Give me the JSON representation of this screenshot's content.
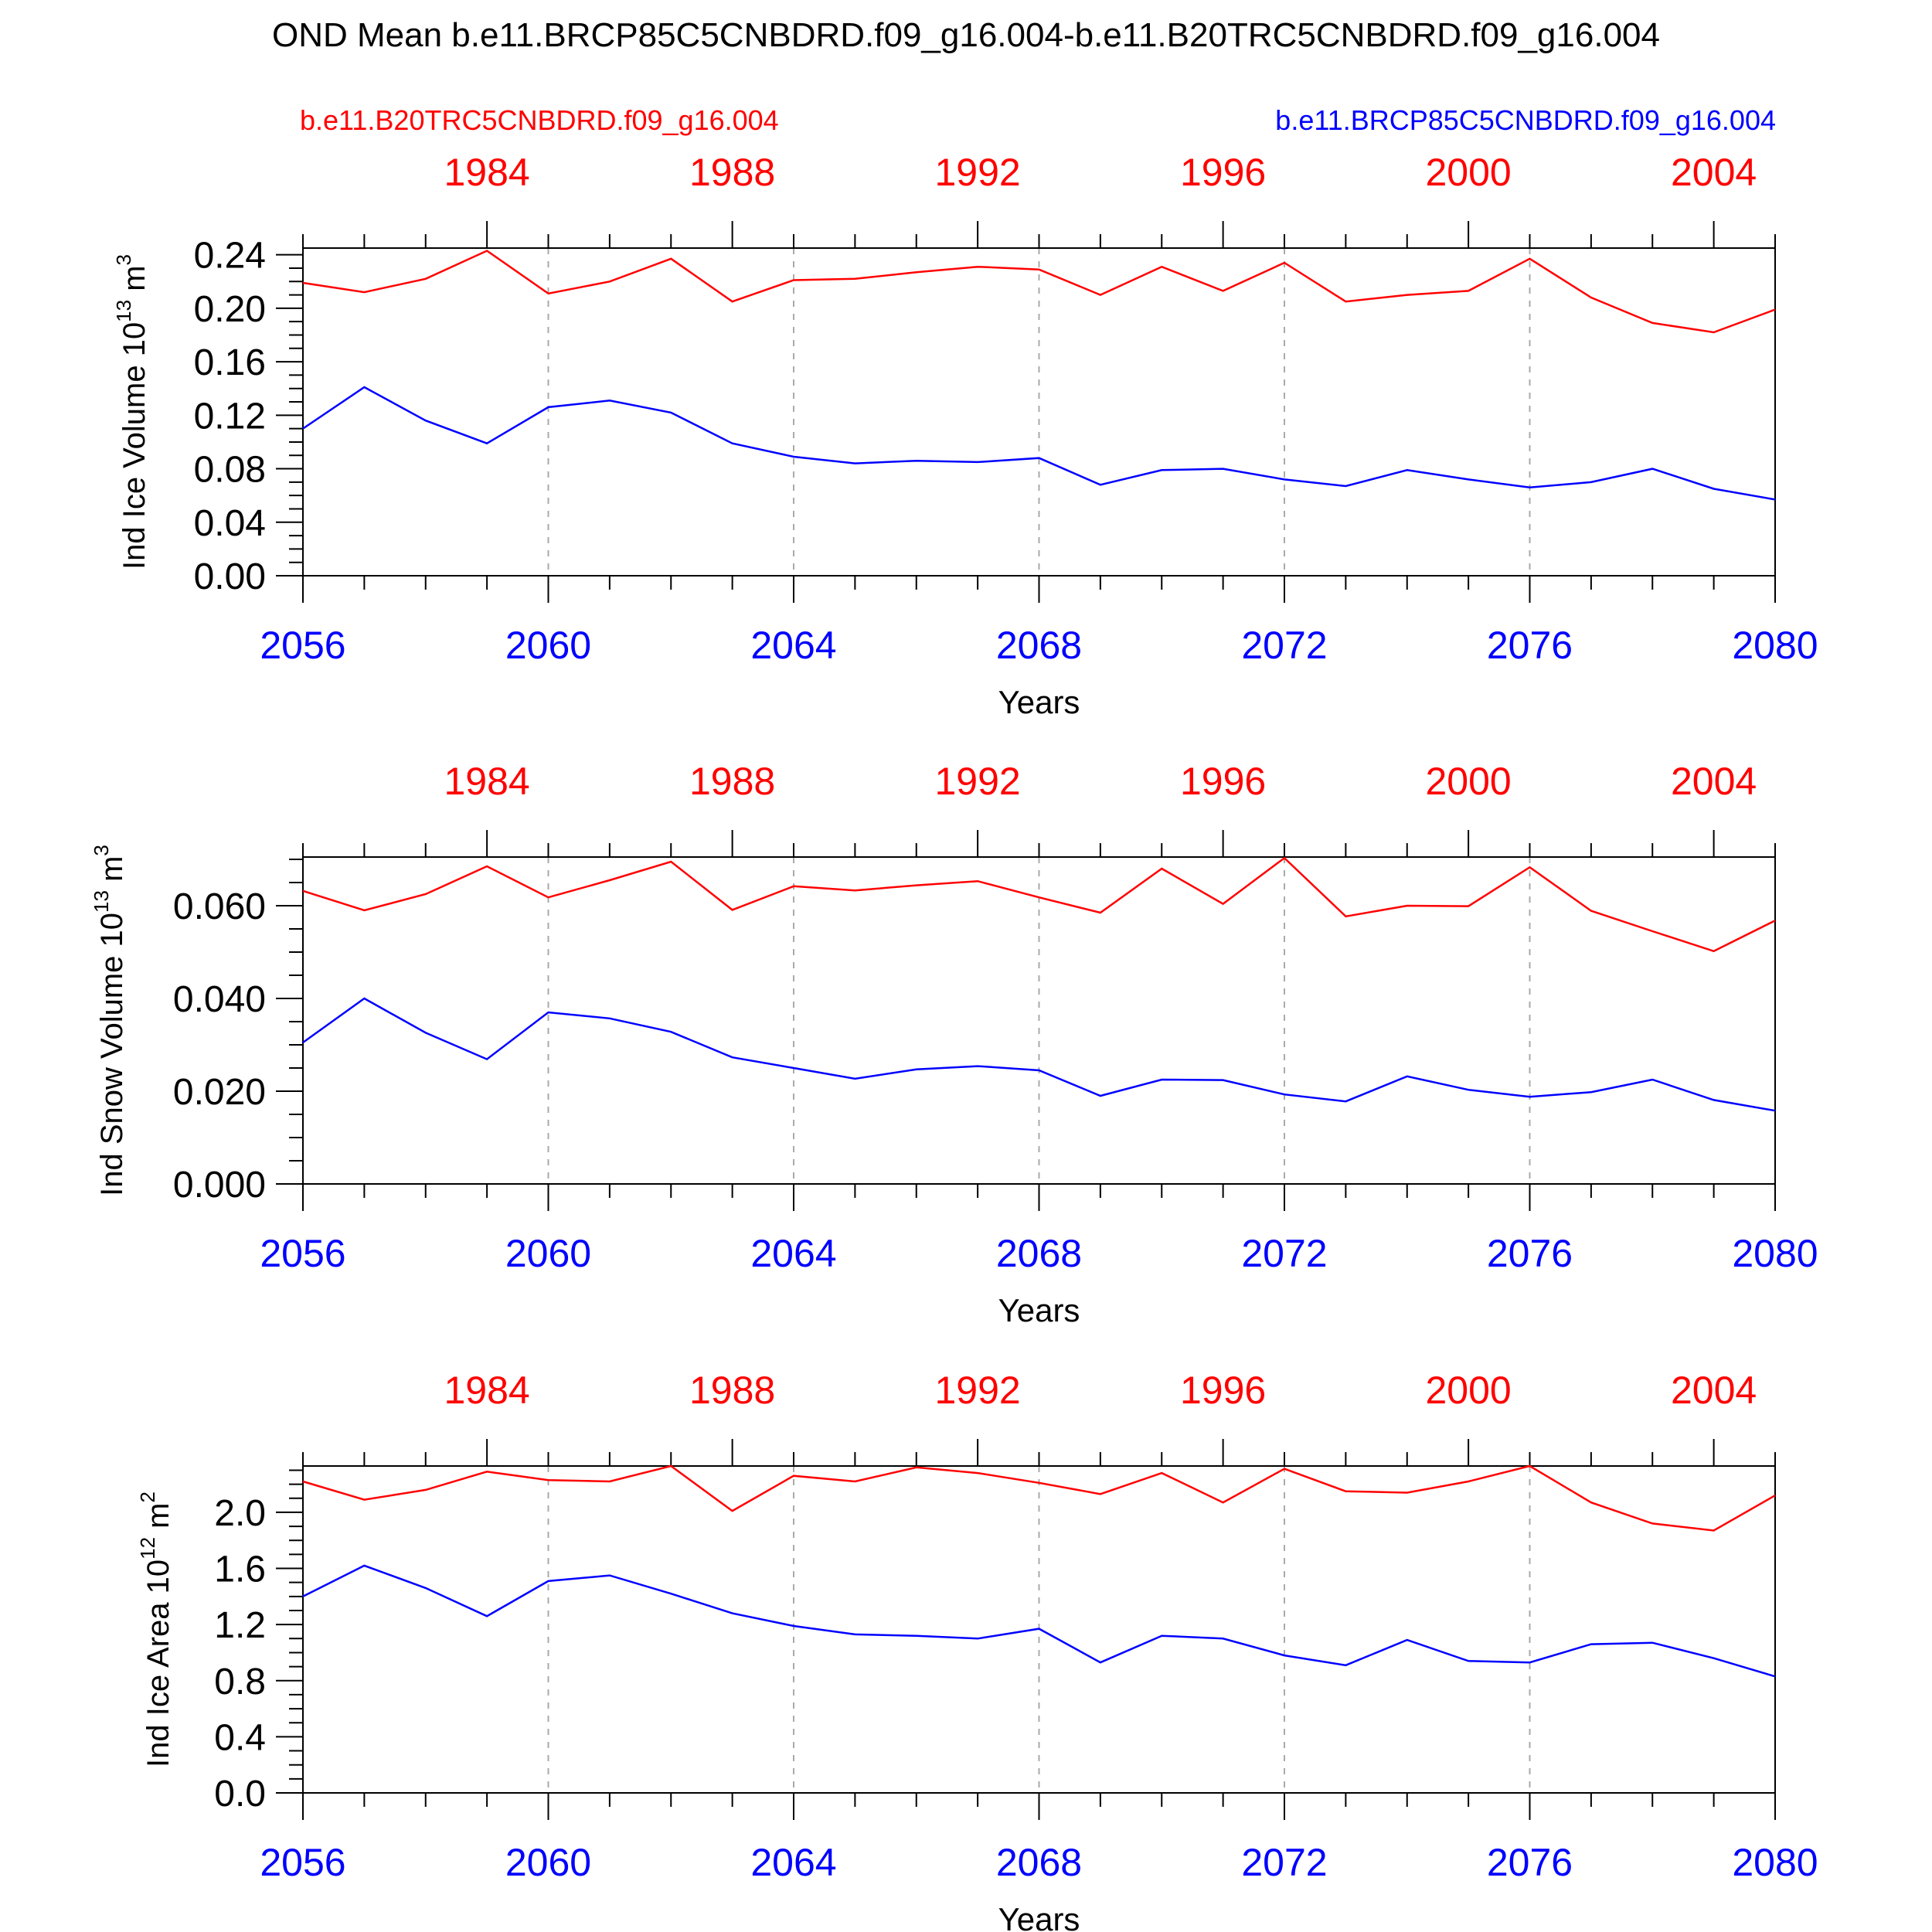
{
  "title": "OND Mean b.e11.BRCP85C5CNBDRD.f09_g16.004-b.e11.B20TRC5CNBDRD.f09_g16.004",
  "legend": {
    "left": {
      "label": "b.e11.B20TRC5CNBDRD.f09_g16.004",
      "color": "#ff0000"
    },
    "right": {
      "label": "b.e11.BRCP85C5CNBDRD.f09_g16.004",
      "color": "#0000ff"
    }
  },
  "colors": {
    "red": "#ff0000",
    "blue": "#0000ff",
    "grid": "#aaaaaa",
    "axis": "#000000"
  },
  "chart_data": [
    {
      "type": "line",
      "ylabel": "Ind Ice Volume 10",
      "ylabel_exp": "13",
      "ylabel_unit": " m",
      "ylabel_unit_exp": "3",
      "xlabel": "Years",
      "ylim": [
        0,
        0.245
      ],
      "yticks": [
        "0.00",
        "0.04",
        "0.08",
        "0.12",
        "0.16",
        "0.20",
        "0.24"
      ],
      "ytick_values": [
        0,
        0.04,
        0.08,
        0.12,
        0.16,
        0.2,
        0.24
      ],
      "bottom_axis": {
        "ticks": [
          "2056",
          "2060",
          "2064",
          "2068",
          "2072",
          "2076",
          "2080"
        ],
        "range": [
          2056,
          2080
        ]
      },
      "top_axis": {
        "ticks": [
          "1984",
          "1988",
          "1992",
          "1996",
          "2000",
          "2004"
        ],
        "range": [
          1981,
          2005
        ]
      },
      "series": [
        {
          "name": "b.e11.B20TRC5CNBDRD.f09_g16.004",
          "color": "#ff0000",
          "x": [
            1981,
            1982,
            1983,
            1984,
            1985,
            1986,
            1987,
            1988,
            1989,
            1990,
            1991,
            1992,
            1993,
            1994,
            1995,
            1996,
            1997,
            1998,
            1999,
            2000,
            2001,
            2002,
            2003,
            2004,
            2005
          ],
          "values": [
            0.219,
            0.212,
            0.222,
            0.243,
            0.211,
            0.22,
            0.237,
            0.205,
            0.221,
            0.222,
            0.227,
            0.231,
            0.229,
            0.21,
            0.231,
            0.213,
            0.234,
            0.205,
            0.21,
            0.213,
            0.237,
            0.208,
            0.189,
            0.182,
            0.199
          ]
        },
        {
          "name": "b.e11.BRCP85C5CNBDRD.f09_g16.004",
          "color": "#0000ff",
          "x": [
            2056,
            2057,
            2058,
            2059,
            2060,
            2061,
            2062,
            2063,
            2064,
            2065,
            2066,
            2067,
            2068,
            2069,
            2070,
            2071,
            2072,
            2073,
            2074,
            2075,
            2076,
            2077,
            2078,
            2079,
            2080
          ],
          "values": [
            0.11,
            0.141,
            0.116,
            0.099,
            0.126,
            0.131,
            0.122,
            0.099,
            0.089,
            0.084,
            0.086,
            0.085,
            0.088,
            0.068,
            0.079,
            0.08,
            0.072,
            0.067,
            0.079,
            0.072,
            0.066,
            0.07,
            0.08,
            0.065,
            0.057
          ]
        }
      ]
    },
    {
      "type": "line",
      "ylabel": "Ind Snow Volume 10",
      "ylabel_exp": "13",
      "ylabel_unit": " m",
      "ylabel_unit_exp": "3",
      "xlabel": "Years",
      "ylim": [
        0,
        0.0705
      ],
      "yticks": [
        "0.000",
        "0.020",
        "0.040",
        "0.060"
      ],
      "ytick_values": [
        0,
        0.02,
        0.04,
        0.06
      ],
      "bottom_axis": {
        "ticks": [
          "2056",
          "2060",
          "2064",
          "2068",
          "2072",
          "2076",
          "2080"
        ],
        "range": [
          2056,
          2080
        ]
      },
      "top_axis": {
        "ticks": [
          "1984",
          "1988",
          "1992",
          "1996",
          "2000",
          "2004"
        ],
        "range": [
          1981,
          2005
        ]
      },
      "series": [
        {
          "name": "b.e11.B20TRC5CNBDRD.f09_g16.004",
          "color": "#ff0000",
          "x": [
            1981,
            1982,
            1983,
            1984,
            1985,
            1986,
            1987,
            1988,
            1989,
            1990,
            1991,
            1992,
            1993,
            1994,
            1995,
            1996,
            1997,
            1998,
            1999,
            2000,
            2001,
            2002,
            2003,
            2004,
            2005
          ],
          "values": [
            0.0632,
            0.059,
            0.0625,
            0.0685,
            0.0618,
            0.0655,
            0.0695,
            0.0591,
            0.0642,
            0.0633,
            0.0644,
            0.0653,
            0.0618,
            0.0585,
            0.068,
            0.0604,
            0.0703,
            0.0577,
            0.06,
            0.0599,
            0.0683,
            0.0589,
            0.0545,
            0.0502,
            0.0568
          ]
        },
        {
          "name": "b.e11.BRCP85C5CNBDRD.f09_g16.004",
          "color": "#0000ff",
          "x": [
            2056,
            2057,
            2058,
            2059,
            2060,
            2061,
            2062,
            2063,
            2064,
            2065,
            2066,
            2067,
            2068,
            2069,
            2070,
            2071,
            2072,
            2073,
            2074,
            2075,
            2076,
            2077,
            2078,
            2079,
            2080
          ],
          "values": [
            0.0305,
            0.04,
            0.0326,
            0.0269,
            0.037,
            0.0357,
            0.0328,
            0.0273,
            0.025,
            0.0227,
            0.0247,
            0.0254,
            0.0245,
            0.019,
            0.0225,
            0.0224,
            0.0193,
            0.0178,
            0.0232,
            0.0203,
            0.0188,
            0.0198,
            0.0225,
            0.0181,
            0.0158
          ]
        }
      ]
    },
    {
      "type": "line",
      "ylabel": "Ind Ice Area 10",
      "ylabel_exp": "12",
      "ylabel_unit": " m",
      "ylabel_unit_exp": "2",
      "xlabel": "Years",
      "ylim": [
        0,
        2.33
      ],
      "yticks": [
        "0.0",
        "0.4",
        "0.8",
        "1.2",
        "1.6",
        "2.0"
      ],
      "ytick_values": [
        0,
        0.4,
        0.8,
        1.2,
        1.6,
        2.0
      ],
      "bottom_axis": {
        "ticks": [
          "2056",
          "2060",
          "2064",
          "2068",
          "2072",
          "2076",
          "2080"
        ],
        "range": [
          2056,
          2080
        ]
      },
      "top_axis": {
        "ticks": [
          "1984",
          "1988",
          "1992",
          "1996",
          "2000",
          "2004"
        ],
        "range": [
          1981,
          2005
        ]
      },
      "series": [
        {
          "name": "b.e11.B20TRC5CNBDRD.f09_g16.004",
          "color": "#ff0000",
          "x": [
            1981,
            1982,
            1983,
            1984,
            1985,
            1986,
            1987,
            1988,
            1989,
            1990,
            1991,
            1992,
            1993,
            1994,
            1995,
            1996,
            1997,
            1998,
            1999,
            2000,
            2001,
            2002,
            2003,
            2004,
            2005
          ],
          "values": [
            2.22,
            2.09,
            2.16,
            2.29,
            2.23,
            2.22,
            2.33,
            2.01,
            2.26,
            2.22,
            2.32,
            2.28,
            2.21,
            2.13,
            2.28,
            2.07,
            2.31,
            2.15,
            2.14,
            2.22,
            2.33,
            2.07,
            1.92,
            1.87,
            2.12
          ]
        },
        {
          "name": "b.e11.BRCP85C5CNBDRD.f09_g16.004",
          "color": "#0000ff",
          "x": [
            2056,
            2057,
            2058,
            2059,
            2060,
            2061,
            2062,
            2063,
            2064,
            2065,
            2066,
            2067,
            2068,
            2069,
            2070,
            2071,
            2072,
            2073,
            2074,
            2075,
            2076,
            2077,
            2078,
            2079,
            2080
          ],
          "values": [
            1.4,
            1.62,
            1.46,
            1.26,
            1.51,
            1.55,
            1.42,
            1.28,
            1.19,
            1.13,
            1.12,
            1.1,
            1.17,
            0.93,
            1.12,
            1.1,
            0.98,
            0.91,
            1.09,
            0.94,
            0.93,
            1.06,
            1.07,
            0.96,
            0.83
          ]
        }
      ]
    }
  ]
}
